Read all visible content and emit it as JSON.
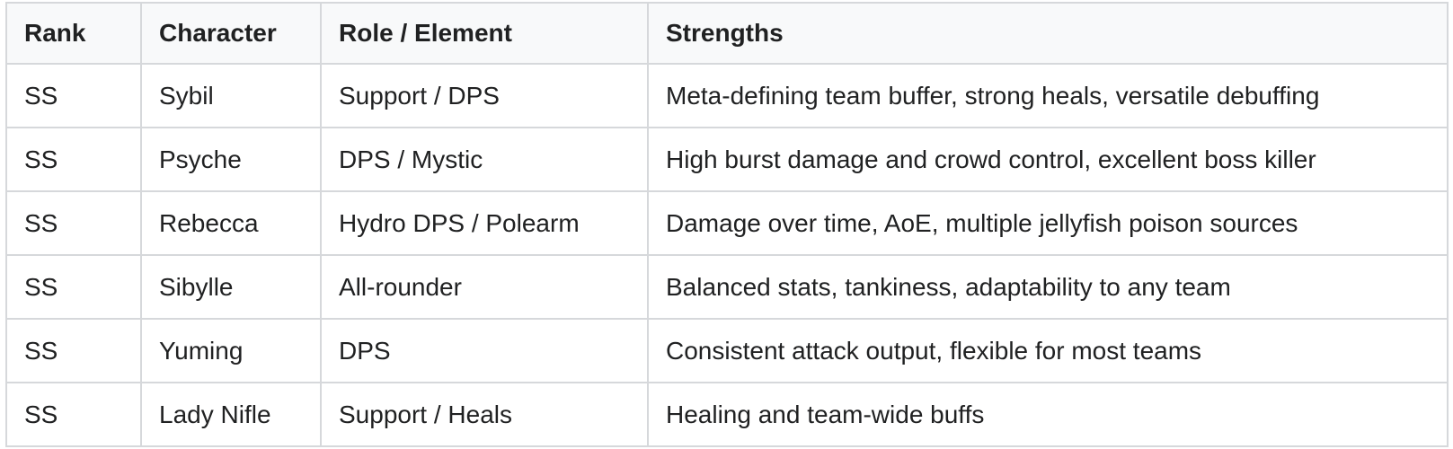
{
  "table": {
    "columns": [
      {
        "label": "Rank"
      },
      {
        "label": "Character"
      },
      {
        "label": "Role / Element"
      },
      {
        "label": "Strengths"
      }
    ],
    "rows": [
      {
        "rank": "SS",
        "character": "Sybil",
        "role": "Support / DPS",
        "strengths": "Meta-defining team buffer, strong heals, versatile debuffing"
      },
      {
        "rank": "SS",
        "character": "Psyche",
        "role": "DPS / Mystic",
        "strengths": "High burst damage and crowd control, excellent boss killer"
      },
      {
        "rank": "SS",
        "character": "Rebecca",
        "role": "Hydro DPS / Polearm",
        "strengths": "Damage over time, AoE, multiple jellyfish poison sources"
      },
      {
        "rank": "SS",
        "character": "Sibylle",
        "role": "All-rounder",
        "strengths": "Balanced stats, tankiness, adaptability to any team"
      },
      {
        "rank": "SS",
        "character": "Yuming",
        "role": "DPS",
        "strengths": "Consistent attack output, flexible for most teams"
      },
      {
        "rank": "SS",
        "character": "Lady Nifle",
        "role": "Support / Heals",
        "strengths": "Healing and team-wide buffs"
      }
    ],
    "colors": {
      "header_bg": "#f8f9fa",
      "border": "#d6d8db",
      "text": "#202122",
      "row_bg": "#ffffff"
    }
  }
}
